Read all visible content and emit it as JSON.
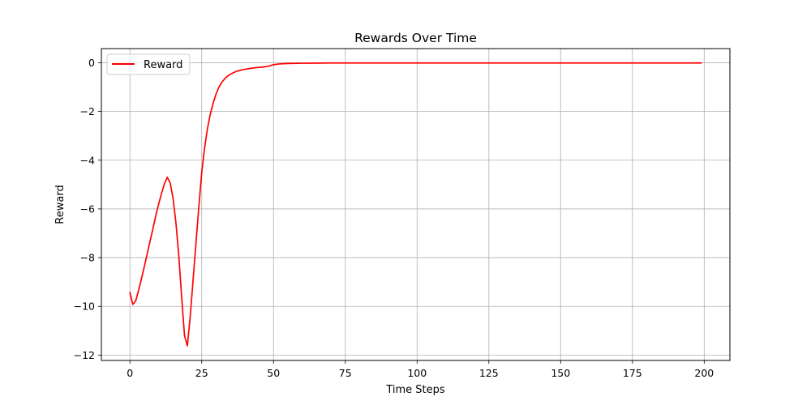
{
  "chart_data": {
    "type": "line",
    "title": "Rewards Over Time",
    "xlabel": "Time Steps",
    "ylabel": "Reward",
    "xlim": [
      -9.95,
      208.95
    ],
    "ylim": [
      -12.22,
      0.58
    ],
    "xticks": [
      0,
      25,
      50,
      75,
      100,
      125,
      150,
      175,
      200
    ],
    "yticks": [
      -12,
      -10,
      -8,
      -6,
      -4,
      -2,
      0
    ],
    "ytick_labels": [
      "−12",
      "−10",
      "−8",
      "−6",
      "−4",
      "−2",
      "0"
    ],
    "grid": true,
    "legend": {
      "placement": "top-left",
      "entries": [
        "Reward"
      ]
    },
    "series": [
      {
        "name": "Reward",
        "color": "#ff0000",
        "points": [
          [
            0,
            -9.43
          ],
          [
            1,
            -9.92
          ],
          [
            2,
            -9.78
          ],
          [
            3,
            -9.35
          ],
          [
            4,
            -8.87
          ],
          [
            5,
            -8.37
          ],
          [
            6,
            -7.85
          ],
          [
            7,
            -7.33
          ],
          [
            8,
            -6.81
          ],
          [
            9,
            -6.28
          ],
          [
            10,
            -5.8
          ],
          [
            11,
            -5.37
          ],
          [
            12,
            -4.97
          ],
          [
            13,
            -4.7
          ],
          [
            14,
            -4.93
          ],
          [
            15,
            -5.55
          ],
          [
            16,
            -6.55
          ],
          [
            17,
            -7.9
          ],
          [
            18,
            -9.6
          ],
          [
            19,
            -11.2
          ],
          [
            20,
            -11.62
          ],
          [
            21,
            -10.4
          ],
          [
            22,
            -8.9
          ],
          [
            23,
            -7.4
          ],
          [
            24,
            -5.9
          ],
          [
            25,
            -4.5
          ],
          [
            26,
            -3.5
          ],
          [
            27,
            -2.7
          ],
          [
            28,
            -2.1
          ],
          [
            29,
            -1.65
          ],
          [
            30,
            -1.28
          ],
          [
            31,
            -1.0
          ],
          [
            32,
            -0.8
          ],
          [
            33,
            -0.66
          ],
          [
            34,
            -0.55
          ],
          [
            35,
            -0.47
          ],
          [
            36,
            -0.41
          ],
          [
            37,
            -0.36
          ],
          [
            38,
            -0.32
          ],
          [
            40,
            -0.27
          ],
          [
            42,
            -0.23
          ],
          [
            44,
            -0.2
          ],
          [
            46,
            -0.18
          ],
          [
            48,
            -0.15
          ],
          [
            50,
            -0.08
          ],
          [
            52,
            -0.05
          ],
          [
            55,
            -0.03
          ],
          [
            60,
            -0.02
          ],
          [
            70,
            -0.01
          ],
          [
            80,
            -0.01
          ],
          [
            100,
            -0.01
          ],
          [
            120,
            -0.01
          ],
          [
            140,
            -0.01
          ],
          [
            160,
            -0.01
          ],
          [
            180,
            -0.01
          ],
          [
            199,
            -0.01
          ]
        ]
      }
    ]
  }
}
